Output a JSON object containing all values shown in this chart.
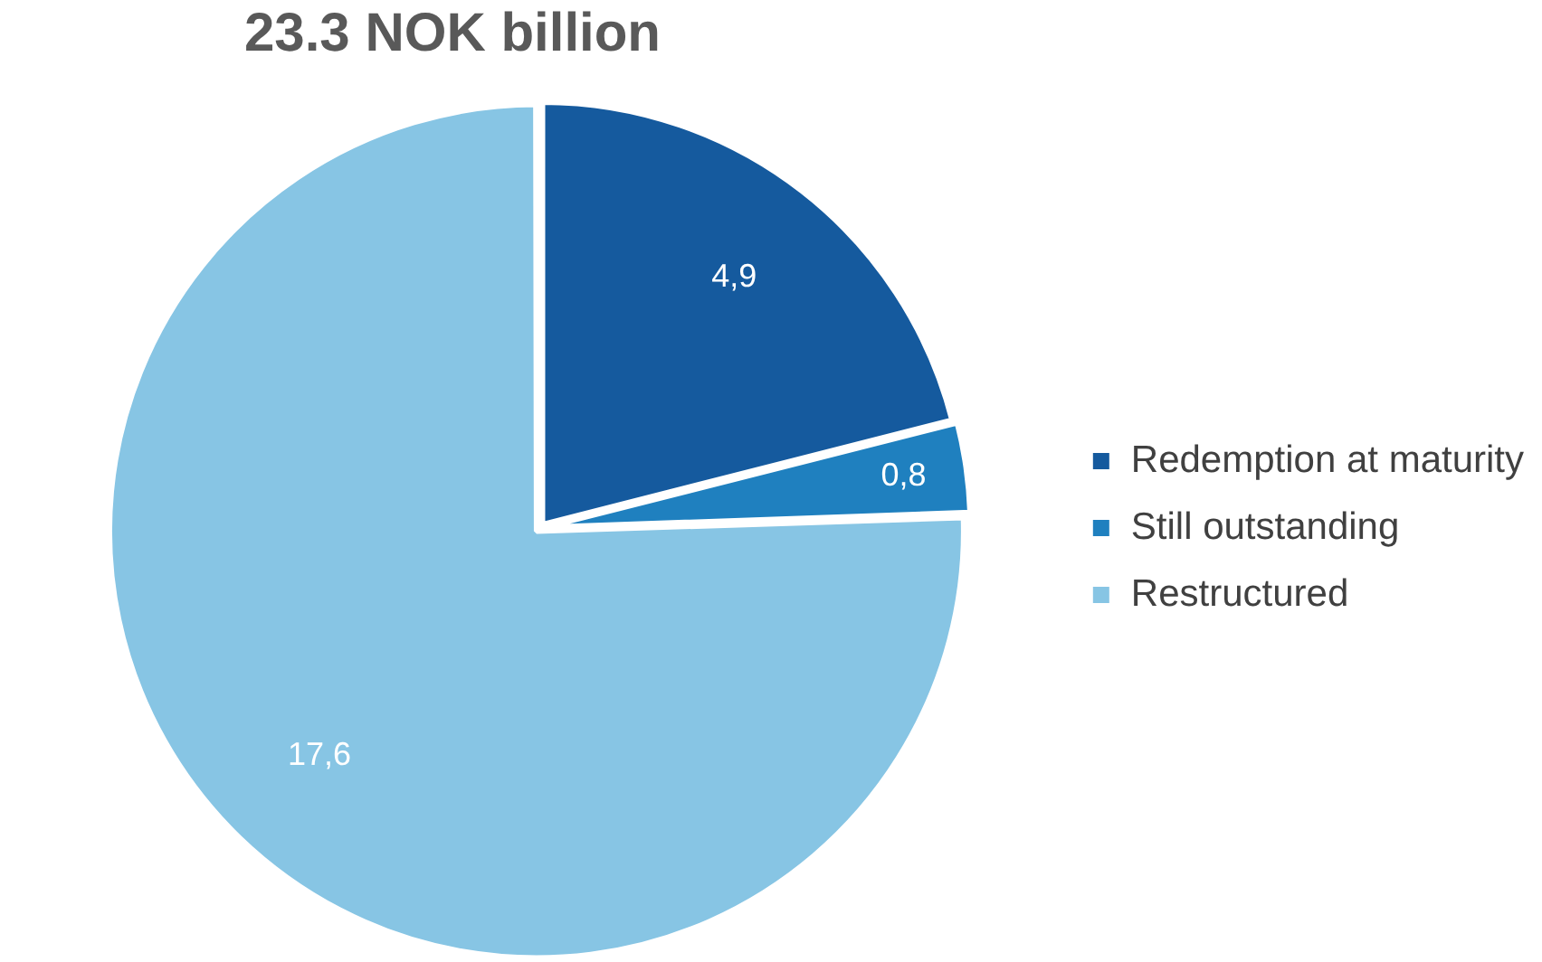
{
  "chart_data": {
    "type": "pie",
    "title": "23.3 NOK billion",
    "categories": [
      "Redemption at maturity",
      "Still outstanding",
      "Restructured"
    ],
    "values": [
      4.9,
      0.8,
      17.6
    ],
    "colors": [
      "#155a9e",
      "#1f80bf",
      "#87c5e4"
    ],
    "value_labels": [
      "4,9",
      "0,8",
      "17,6"
    ],
    "legend": "right"
  }
}
